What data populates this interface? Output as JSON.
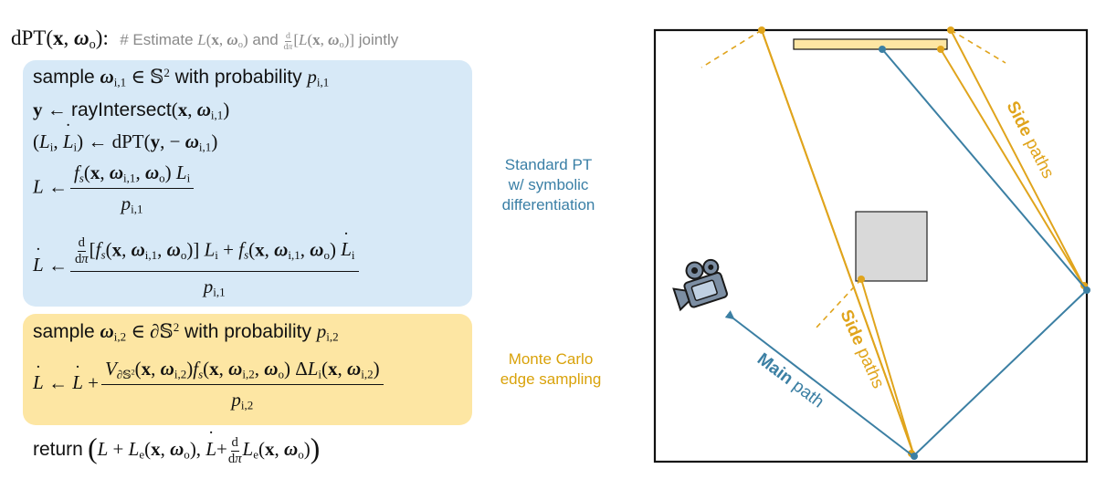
{
  "title": {
    "func": "dPT",
    "comment_prefix": "# Estimate ",
    "comment_mid": " and ",
    "comment_suffix": " jointly"
  },
  "algorithm": {
    "sample_1_pre": "sample ",
    "sample_1_post": " with probability ",
    "ray_intersect": "rayIntersect",
    "recursive_call": "dPT",
    "sample_2_pre": "sample ",
    "sample_2_post": " with probability ",
    "return_kw": "return"
  },
  "annotations": {
    "standard_pt": "Standard PT\nw/ symbolic\ndifferentiation",
    "monte_carlo": "Monte Carlo\nedge sampling"
  },
  "scene_labels": {
    "side_top_bold": "Side",
    "side_top_rest": " paths",
    "side_mid_bold": "Side",
    "side_mid_rest": " paths",
    "main_bold": "Main",
    "main_rest": " path"
  },
  "colors": {
    "blue_box": "#d7e9f7",
    "orange_box": "#fde6a3",
    "blue_text": "#3a7fa6",
    "orange_text": "#d9a20a",
    "main_path": "#3b7fa3",
    "side_path": "#e0a41c",
    "light_source": "#fde6a3",
    "occluder": "#d9d9d9"
  },
  "icons": [
    "camera-icon"
  ]
}
